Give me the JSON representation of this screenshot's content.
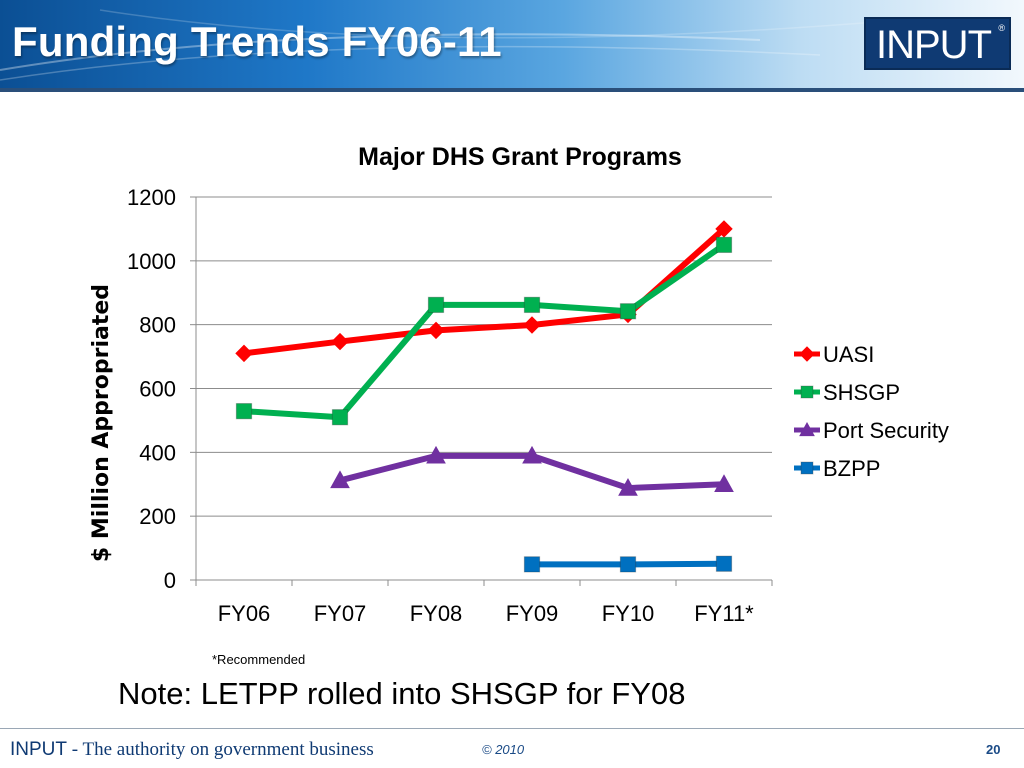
{
  "header": {
    "title": "Funding Trends FY06-11",
    "logo_text": "INPUT",
    "logo_mark": "®"
  },
  "chart_data": {
    "type": "line",
    "title": "Major DHS Grant Programs",
    "ylabel": "$ Million Appropriated",
    "xlabel": "",
    "categories": [
      "FY06",
      "FY07",
      "FY08",
      "FY09",
      "FY10",
      "FY11*"
    ],
    "ylim": [
      0,
      1200
    ],
    "yticks": [
      0,
      200,
      400,
      600,
      800,
      1000,
      1200
    ],
    "grid": true,
    "legend_position": "right",
    "series": [
      {
        "name": "UASI",
        "values": [
          710,
          747,
          782,
          799,
          832,
          1100
        ],
        "color": "#ff0000",
        "marker": "diamond"
      },
      {
        "name": "SHSGP",
        "values": [
          529,
          510,
          862,
          862,
          842,
          1050
        ],
        "color": "#00b050",
        "marker": "square"
      },
      {
        "name": "Port Security",
        "values": [
          null,
          312,
          389,
          389,
          288,
          300
        ],
        "color": "#7030a0",
        "marker": "triangle"
      },
      {
        "name": "BZPP",
        "values": [
          null,
          null,
          null,
          49,
          49,
          51
        ],
        "color": "#0070c0",
        "marker": "square"
      }
    ]
  },
  "footnote": "*Recommended",
  "note": "Note: LETPP rolled into SHSGP for FY08",
  "footer": {
    "brand": "INPUT",
    "tagline": " - The authority on government business",
    "copyright": "© 2010",
    "page_number": "20"
  }
}
